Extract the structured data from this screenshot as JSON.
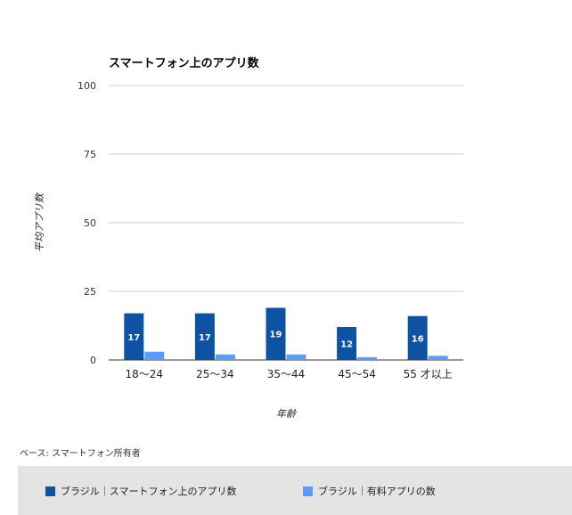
{
  "chart_data": {
    "type": "bar",
    "title": "スマートフォン上のアプリ数",
    "ylabel": "平均アプリ数",
    "xlabel": "年齢",
    "ylim": [
      0,
      100
    ],
    "yticks": [
      0,
      25,
      50,
      75,
      100
    ],
    "grid": true,
    "legend_position": "bottom",
    "categories": [
      "18～24",
      "25～34",
      "35～44",
      "45～54",
      "55 才以上"
    ],
    "series": [
      {
        "name": "ブラジル｜スマートフォン上のアプリ数",
        "values": [
          17,
          17,
          19,
          12,
          16
        ],
        "color": "#0d52a3",
        "data_labels": true
      },
      {
        "name": "ブラジル｜有料アプリの数",
        "values": [
          3,
          2,
          2,
          1,
          1.5
        ],
        "color": "#5b9cf5",
        "data_labels": false
      }
    ]
  },
  "footnote": "ベース: スマートフォン所有者"
}
